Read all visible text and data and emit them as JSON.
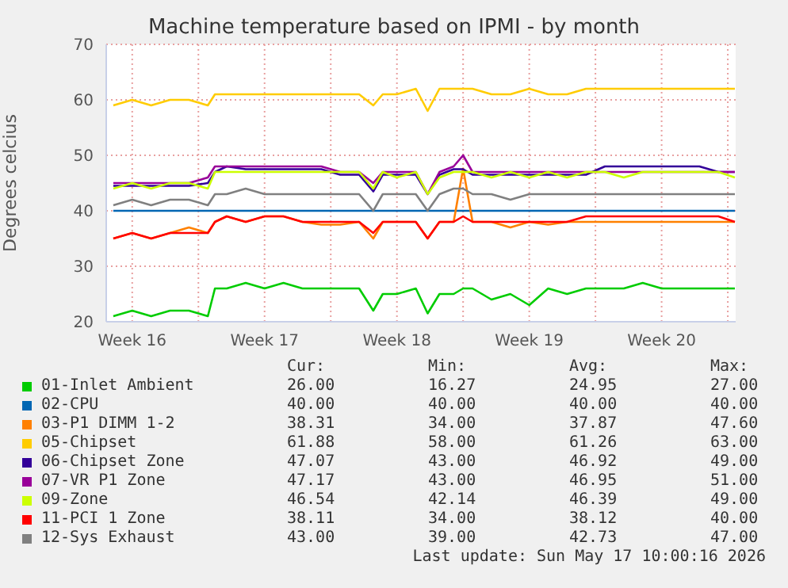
{
  "chart_data": {
    "type": "line",
    "title": "Machine temperature based on IPMI - by month",
    "ylabel": "Degrees celcius",
    "x": [
      "2026-04-15T12:00",
      "2026-04-16T12:00",
      "2026-04-17T12:00",
      "2026-04-18T12:00",
      "2026-04-19T12:00",
      "2026-04-20T12:00",
      "2026-04-20T21:00",
      "2026-04-21T12:00",
      "2026-04-22T12:00",
      "2026-04-23T12:00",
      "2026-04-24T12:00",
      "2026-04-25T12:00",
      "2026-04-26T12:00",
      "2026-04-27T12:00",
      "2026-04-28T12:00",
      "2026-04-29T06:00",
      "2026-04-29T18:00",
      "2026-04-30T12:00",
      "2026-05-01T12:00",
      "2026-05-02T03:00",
      "2026-05-02T18:00",
      "2026-05-03T12:00",
      "2026-05-04T00:00",
      "2026-05-04T12:00",
      "2026-05-05T12:00",
      "2026-05-06T12:00",
      "2026-05-07T12:00",
      "2026-05-08T12:00",
      "2026-05-09T12:00",
      "2026-05-10T12:00",
      "2026-05-11T12:00",
      "2026-05-12T12:00",
      "2026-05-13T12:00",
      "2026-05-14T12:00",
      "2026-05-15T12:00",
      "2026-05-16T12:00",
      "2026-05-17T12:00",
      "2026-05-18T09:00"
    ],
    "xlim": [
      "2026-04-15T03:00",
      "2026-05-18T10:00"
    ],
    "xticks": [
      {
        "value": "2026-04-16T12:00",
        "label": "Week 16"
      },
      {
        "value": "2026-04-20T00:00",
        "label": null
      },
      {
        "value": "2026-04-23T12:00",
        "label": "Week 17"
      },
      {
        "value": "2026-04-27T00:00",
        "label": null
      },
      {
        "value": "2026-04-30T12:00",
        "label": "Week 18"
      },
      {
        "value": "2026-05-04T00:00",
        "label": null
      },
      {
        "value": "2026-05-07T12:00",
        "label": "Week 19"
      },
      {
        "value": "2026-05-11T00:00",
        "label": null
      },
      {
        "value": "2026-05-14T12:00",
        "label": "Week 20"
      },
      {
        "value": "2026-05-18T00:00",
        "label": null
      }
    ],
    "ylim": [
      20,
      70
    ],
    "yticks": [
      20,
      30,
      40,
      50,
      60,
      70
    ],
    "grid": true,
    "legend": "bottom",
    "marker": "none",
    "line_style": "solid",
    "series": [
      {
        "name": "01-Inlet Ambient",
        "color": "#00cc00",
        "values": [
          21,
          22,
          21,
          22,
          22,
          21,
          26,
          26,
          27,
          26,
          27,
          26,
          26,
          26,
          26,
          22,
          25,
          25,
          26,
          21.5,
          25,
          25,
          26,
          26,
          24,
          25,
          23,
          26,
          25,
          26,
          26,
          26,
          27,
          26,
          26,
          26,
          26,
          26
        ]
      },
      {
        "name": "02-CPU",
        "color": "#0066b3",
        "values": [
          40,
          40,
          40,
          40,
          40,
          40,
          40,
          40,
          40,
          40,
          40,
          40,
          40,
          40,
          40,
          40,
          40,
          40,
          40,
          40,
          40,
          40,
          40,
          40,
          40,
          40,
          40,
          40,
          40,
          40,
          40,
          40,
          40,
          40,
          40,
          40,
          40,
          40
        ]
      },
      {
        "name": "03-P1 DIMM 1-2",
        "color": "#ff8000",
        "values": [
          35,
          36,
          35,
          36,
          37,
          36,
          38,
          39,
          38,
          39,
          39,
          38,
          37.5,
          37.5,
          38,
          35,
          38,
          38,
          38,
          35,
          38,
          38,
          47.6,
          38,
          38,
          37,
          38,
          37.5,
          38,
          38,
          38,
          38,
          38,
          38,
          38,
          38,
          38,
          38
        ]
      },
      {
        "name": "05-Chipset",
        "color": "#ffcc00",
        "values": [
          59,
          60,
          59,
          60,
          60,
          59,
          61,
          61,
          61,
          61,
          61,
          61,
          61,
          61,
          61,
          59,
          61,
          61,
          62,
          58,
          62,
          62,
          62,
          62,
          61,
          61,
          62,
          61,
          61,
          62,
          62,
          62,
          62,
          62,
          62,
          62,
          62,
          62
        ]
      },
      {
        "name": "06-Chipset Zone",
        "color": "#330099",
        "values": [
          44.5,
          44.5,
          44.5,
          44.5,
          44.5,
          45,
          47,
          48,
          47.5,
          47.5,
          47.5,
          47.5,
          47.5,
          46.5,
          46.5,
          43.5,
          46.5,
          46.5,
          46.5,
          43,
          46.5,
          47.5,
          47.5,
          46.5,
          46.5,
          46.5,
          46.5,
          46.5,
          46.5,
          46.5,
          48,
          48,
          48,
          48,
          48,
          48,
          47,
          47
        ]
      },
      {
        "name": "07-VR P1 Zone",
        "color": "#990099",
        "values": [
          45,
          45,
          45,
          45,
          45,
          46,
          48,
          48,
          48,
          48,
          48,
          48,
          48,
          47,
          47,
          45,
          47,
          47,
          47,
          43,
          47,
          48,
          50,
          47,
          47,
          47,
          47,
          47,
          47,
          47,
          47,
          47,
          47,
          47,
          47,
          47,
          47,
          47
        ]
      },
      {
        "name": "09-Zone",
        "color": "#ccff00",
        "values": [
          44,
          45,
          44,
          45,
          45,
          44,
          47,
          47,
          47,
          47,
          47,
          47,
          47,
          47,
          47,
          44,
          47,
          46,
          47,
          43,
          46,
          47,
          47,
          47,
          46,
          47,
          46,
          47,
          46,
          47,
          47,
          46,
          47,
          47,
          47,
          47,
          47,
          46
        ]
      },
      {
        "name": "11-PCI 1 Zone",
        "color": "#ff0000",
        "values": [
          35,
          36,
          35,
          36,
          36,
          36,
          38,
          39,
          38,
          39,
          39,
          38,
          38,
          38,
          38,
          36,
          38,
          38,
          38,
          35,
          38,
          38,
          39,
          38,
          38,
          38,
          38,
          38,
          38,
          39,
          39,
          39,
          39,
          39,
          39,
          39,
          39,
          38
        ]
      },
      {
        "name": "12-Sys Exhaust",
        "color": "#808080",
        "values": [
          41,
          42,
          41,
          42,
          42,
          41,
          43,
          43,
          44,
          43,
          43,
          43,
          43,
          43,
          43,
          40,
          43,
          43,
          43,
          40,
          43,
          44,
          44,
          43,
          43,
          42,
          43,
          43,
          43,
          43,
          43,
          43,
          43,
          43,
          43,
          43,
          43,
          43
        ]
      }
    ],
    "annotations": [
      "Cur:",
      "Min:",
      "Avg:",
      "Max:",
      "26.00",
      "16.27",
      "24.95",
      "27.00",
      "40.00",
      "40.00",
      "40.00",
      "40.00",
      "38.31",
      "34.00",
      "37.87",
      "47.60",
      "61.88",
      "58.00",
      "61.26",
      "63.00",
      "47.07",
      "43.00",
      "46.92",
      "49.00",
      "47.17",
      "43.00",
      "46.95",
      "51.00",
      "46.54",
      "42.14",
      "46.39",
      "49.00",
      "38.11",
      "34.00",
      "38.12",
      "40.00",
      "43.00",
      "39.00",
      "42.73",
      "47.00",
      "Last update: Sun May 17 10:00:16 2026"
    ]
  }
}
